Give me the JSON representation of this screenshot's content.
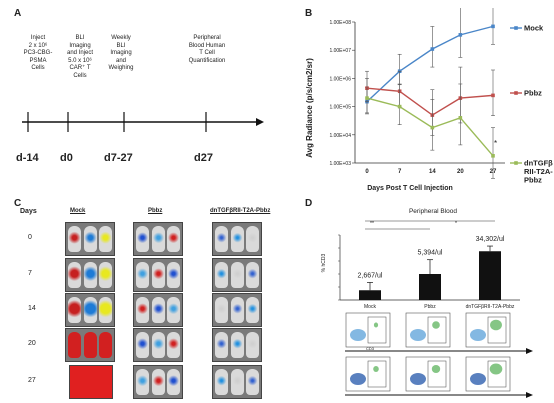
{
  "panels": {
    "a": "A",
    "b": "B",
    "c": "C",
    "d": "D"
  },
  "timeline": {
    "steps": [
      "Inject\n2 x 10⁶\nPC3-CBG-\nPSMA\nCells",
      "BLI\nImaging\nand Inject\n5.0 x 10⁶\nCAR⁺ T\nCells",
      "Weekly\nBLI\nImaging\nand\nWeighing",
      "Peripheral\nBlood Human\nT Cell\nQuantification"
    ],
    "days": [
      "d-14",
      "d0",
      "d7-27",
      "d27"
    ]
  },
  "chart_data": [
    {
      "type": "line",
      "ylabel": "Avg Radiance (p/s/cm2/sr)",
      "xlabel": "Days Post T Cell Injection",
      "x": [
        0,
        7,
        14,
        20,
        27
      ],
      "yscale": "log",
      "ylim": [
        1000,
        100000000
      ],
      "yticks": [
        "1.00E+03",
        "1.00E+04",
        "1.00E+05",
        "1.00E+06",
        "1.00E+07",
        "1.00E+08"
      ],
      "series": [
        {
          "name": "Mock",
          "color": "#4a86c8",
          "values": [
            150000,
            1800000,
            11000000,
            35000000,
            70000000
          ]
        },
        {
          "name": "Pbbz",
          "color": "#c0504d",
          "values": [
            450000,
            350000,
            50000,
            200000,
            250000
          ]
        },
        {
          "name": "dnTGFβ\nRII-T2A-\nPbbz",
          "color": "#9bbb59",
          "values": [
            200000,
            100000,
            18000,
            40000,
            1800
          ]
        }
      ],
      "annotation": "*"
    },
    {
      "type": "bar",
      "title": "Peripheral Blood",
      "ylabel": "% hCD3",
      "categories": [
        "Mock",
        "Pbbz",
        "dnTGFβRII-T2A-Pbbz"
      ],
      "values": [
        15,
        40,
        75
      ],
      "ylim": [
        0,
        100
      ],
      "bar_labels": [
        "2,667/ul",
        "5,394/ul",
        "34,302/ul"
      ],
      "significance": [
        "**",
        "*"
      ]
    }
  ],
  "imaging": {
    "days_header": "Days",
    "columns": [
      "Mock",
      "Pbbz",
      "dnTGFβRII-T2A-Pbbz"
    ],
    "days": [
      "0",
      "7",
      "14",
      "20",
      "27"
    ]
  },
  "flow": {
    "axis_label": "CD3"
  }
}
